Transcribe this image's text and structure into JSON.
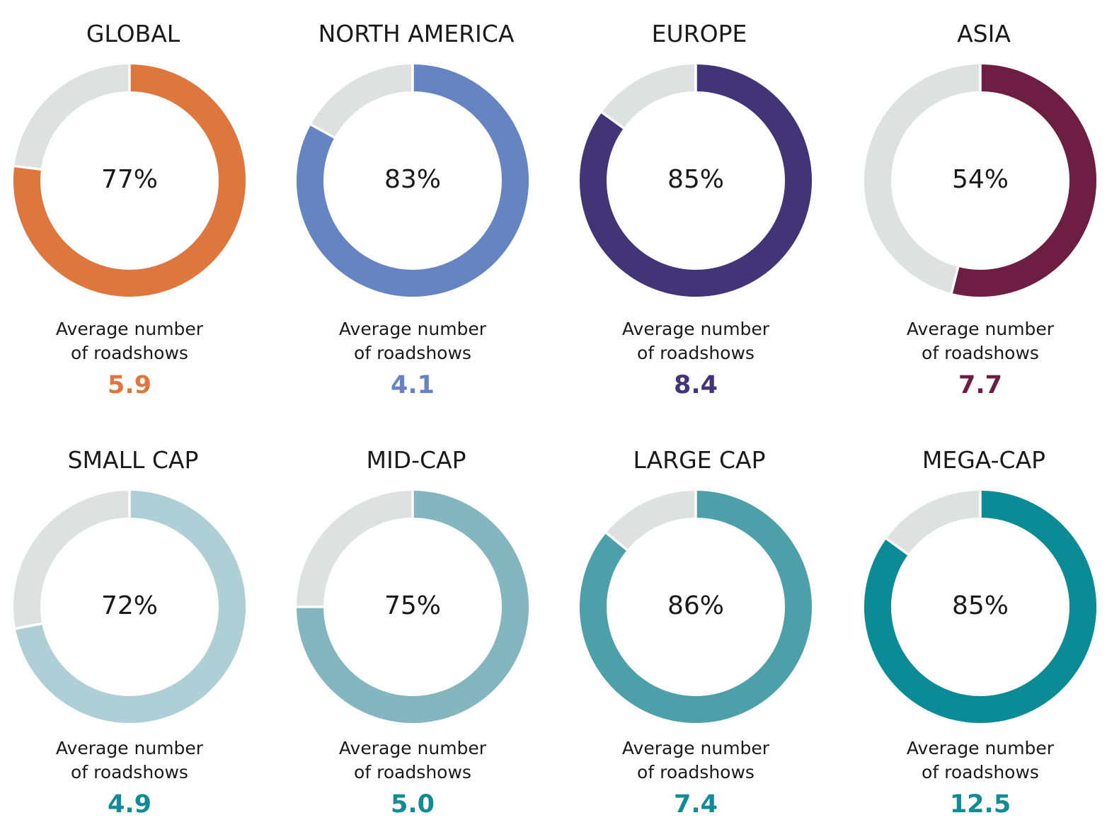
{
  "chart_data": {
    "type": "pie",
    "variant": "donut",
    "caption_line1": "Average number",
    "caption_line2": "of roadshows",
    "remainder_color": "#dfe1e1",
    "panels": [
      {
        "title": "GLOBAL",
        "value": 77,
        "label": "77%",
        "avg": "5.9",
        "color": "#dd773e"
      },
      {
        "title": "NORTH AMERICA",
        "value": 83,
        "label": "83%",
        "avg": "4.1",
        "color": "#6683c2"
      },
      {
        "title": "EUROPE",
        "value": 85,
        "label": "85%",
        "avg": "8.4",
        "color": "#413578"
      },
      {
        "title": "ASIA",
        "value": 54,
        "label": "54%",
        "avg": "7.7",
        "color": "#6e1e43"
      },
      {
        "title": "SMALL CAP",
        "value": 72,
        "label": "72%",
        "avg": "4.9",
        "color": "#aecfd6",
        "avg_color": "#118b95"
      },
      {
        "title": "MID-CAP",
        "value": 75,
        "label": "75%",
        "avg": "5.0",
        "color": "#84b6bf",
        "avg_color": "#118b95"
      },
      {
        "title": "LARGE CAP",
        "value": 86,
        "label": "86%",
        "avg": "7.4",
        "color": "#4da0aa",
        "avg_color": "#118b95"
      },
      {
        "title": "MEGA-CAP",
        "value": 85,
        "label": "85%",
        "avg": "12.5",
        "color": "#0b8b96",
        "avg_color": "#118b95"
      }
    ]
  }
}
